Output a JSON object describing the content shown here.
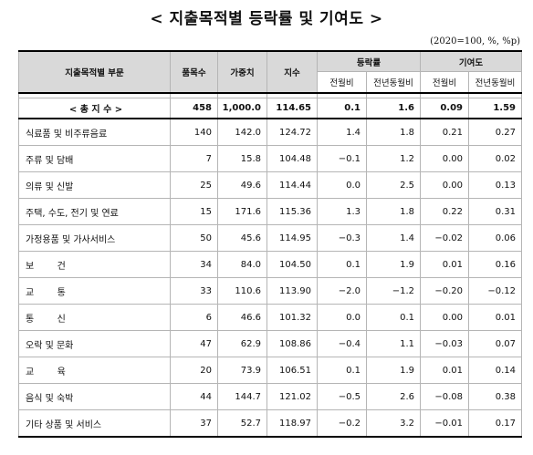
{
  "title": "< 지출목적별 등락률 및 기여도 >",
  "unit_note": "(2020=100, %, %p)",
  "header": {
    "category": "지출목적별 부문",
    "items": "품목수",
    "weight": "가중치",
    "index": "지수",
    "change_group": "등락률",
    "contribution_group": "기여도",
    "mom": "전월비",
    "yoy": "전년동월비",
    "mom2": "전월비",
    "yoy2": "전년동월비"
  },
  "total": {
    "label": "< 총 지 수 >",
    "items": "458",
    "weight": "1,000.0",
    "index": "114.65",
    "chg_mom": "0.1",
    "chg_yoy": "1.6",
    "con_mom": "0.09",
    "con_yoy": "1.59"
  },
  "rows": [
    {
      "label": "식료품 및 비주류음료",
      "items": "140",
      "weight": "142.0",
      "index": "124.72",
      "chg_mom": "1.4",
      "chg_yoy": "1.8",
      "con_mom": "0.21",
      "con_yoy": "0.27"
    },
    {
      "label": "주류 및 담배",
      "items": "7",
      "weight": "15.8",
      "index": "104.48",
      "chg_mom": "−0.1",
      "chg_yoy": "1.2",
      "con_mom": "0.00",
      "con_yoy": "0.02"
    },
    {
      "label": "의류 및 신발",
      "items": "25",
      "weight": "49.6",
      "index": "114.44",
      "chg_mom": "0.0",
      "chg_yoy": "2.5",
      "con_mom": "0.00",
      "con_yoy": "0.13"
    },
    {
      "label": "주택, 수도, 전기 및 연료",
      "items": "15",
      "weight": "171.6",
      "index": "115.36",
      "chg_mom": "1.3",
      "chg_yoy": "1.8",
      "con_mom": "0.22",
      "con_yoy": "0.31"
    },
    {
      "label": "가정용품 및 가사서비스",
      "items": "50",
      "weight": "45.6",
      "index": "114.95",
      "chg_mom": "−0.3",
      "chg_yoy": "1.4",
      "con_mom": "−0.02",
      "con_yoy": "0.06"
    },
    {
      "label": "보        건",
      "items": "34",
      "weight": "84.0",
      "index": "104.50",
      "chg_mom": "0.1",
      "chg_yoy": "1.9",
      "con_mom": "0.01",
      "con_yoy": "0.16"
    },
    {
      "label": "교        통",
      "items": "33",
      "weight": "110.6",
      "index": "113.90",
      "chg_mom": "−2.0",
      "chg_yoy": "−1.2",
      "con_mom": "−0.20",
      "con_yoy": "−0.12"
    },
    {
      "label": "통        신",
      "items": "6",
      "weight": "46.6",
      "index": "101.32",
      "chg_mom": "0.0",
      "chg_yoy": "0.1",
      "con_mom": "0.00",
      "con_yoy": "0.01"
    },
    {
      "label": "오락 및 문화",
      "items": "47",
      "weight": "62.9",
      "index": "108.86",
      "chg_mom": "−0.4",
      "chg_yoy": "1.1",
      "con_mom": "−0.03",
      "con_yoy": "0.07"
    },
    {
      "label": "교        육",
      "items": "20",
      "weight": "73.9",
      "index": "106.51",
      "chg_mom": "0.1",
      "chg_yoy": "1.9",
      "con_mom": "0.01",
      "con_yoy": "0.14"
    },
    {
      "label": "음식 및 숙박",
      "items": "44",
      "weight": "144.7",
      "index": "121.02",
      "chg_mom": "−0.5",
      "chg_yoy": "2.6",
      "con_mom": "−0.08",
      "con_yoy": "0.38"
    },
    {
      "label": "기타 상품 및 서비스",
      "items": "37",
      "weight": "52.7",
      "index": "118.97",
      "chg_mom": "−0.2",
      "chg_yoy": "3.2",
      "con_mom": "−0.01",
      "con_yoy": "0.17"
    }
  ]
}
